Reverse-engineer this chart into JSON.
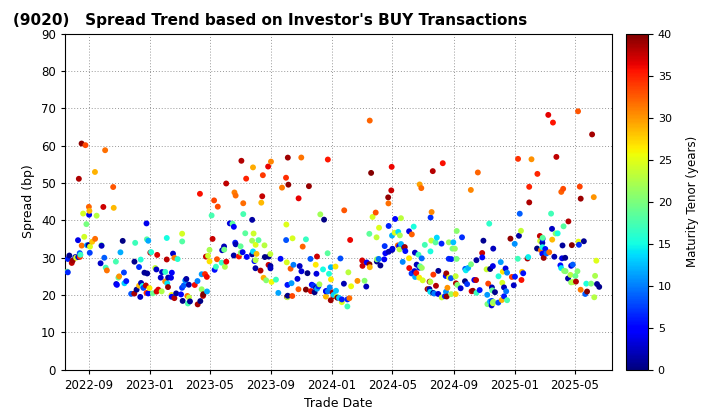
{
  "title": "(9020)   Spread Trend based on Investor's BUY Transactions",
  "xlabel": "Trade Date",
  "ylabel": "Spread (bp)",
  "colorbar_label": "Maturity Tenor (years)",
  "ylim": [
    0,
    90
  ],
  "clim": [
    0,
    40
  ],
  "background_color": "#ffffff",
  "plot_bg_color": "#ffffff",
  "grid_color": "#999999",
  "tick_label_dates": [
    "2022-09",
    "2023-01",
    "2023-05",
    "2023-09",
    "2024-01",
    "2024-05",
    "2024-09",
    "2025-01",
    "2025-05"
  ],
  "xlim_start": "2022-07-15",
  "xlim_end": "2025-07-15",
  "seed": 12345,
  "n_points": 500
}
